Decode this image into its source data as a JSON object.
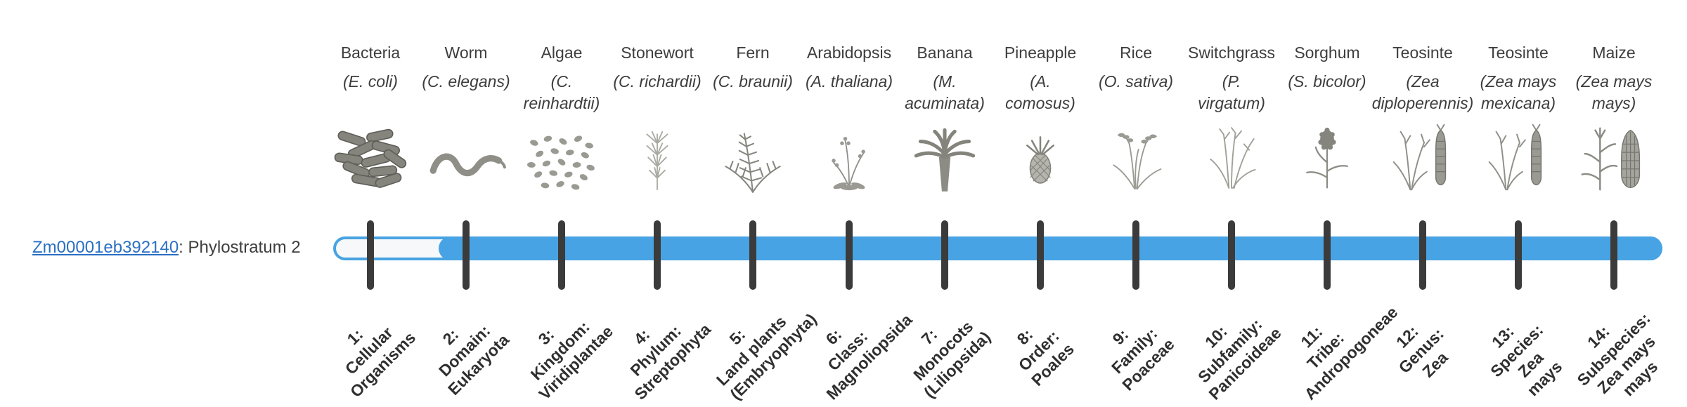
{
  "gene": {
    "id": "Zm00001eb392140",
    "suffix": ": Phylostratum 2"
  },
  "timeline": {
    "bar_color": "#47a3e3",
    "unfilled_color": "#f7f8f9",
    "tick_color": "#3b3b3b",
    "filled_from_stratum": 2,
    "num_strata": 14
  },
  "organisms": [
    {
      "name": "Bacteria",
      "sci_lines": [
        "(E. coli)"
      ],
      "icon": "bacteria",
      "stratum_lines": [
        "1:",
        "Cellular",
        "Organisms"
      ]
    },
    {
      "name": "Worm",
      "sci_lines": [
        "(C. elegans)"
      ],
      "icon": "worm",
      "stratum_lines": [
        "2:",
        "Domain:",
        "Eukaryota"
      ]
    },
    {
      "name": "Algae",
      "sci_lines": [
        "(C.",
        "reinhardtii)"
      ],
      "icon": "algae",
      "stratum_lines": [
        "3:",
        "Kingdom:",
        "Viridiplantae"
      ]
    },
    {
      "name": "Stonewort",
      "sci_lines": [
        "(C. richardii)"
      ],
      "icon": "stonewort",
      "stratum_lines": [
        "4:",
        "Phylum:",
        "Streptophyta"
      ]
    },
    {
      "name": "Fern",
      "sci_lines": [
        "(C. braunii)"
      ],
      "icon": "fern",
      "stratum_lines": [
        "5:",
        "Land plants",
        "(Embryophyta)"
      ]
    },
    {
      "name": "Arabidopsis",
      "sci_lines": [
        "(A. thaliana)"
      ],
      "icon": "arabidopsis",
      "stratum_lines": [
        "6:",
        "Class:",
        "Magnoliopsida"
      ]
    },
    {
      "name": "Banana",
      "sci_lines": [
        "(M.",
        "acuminata)"
      ],
      "icon": "banana",
      "stratum_lines": [
        "7:",
        "Monocots",
        "(Liliopsida)"
      ]
    },
    {
      "name": "Pineapple",
      "sci_lines": [
        "(A.",
        "comosus)"
      ],
      "icon": "pineapple",
      "stratum_lines": [
        "8:",
        "Order:",
        "Poales"
      ]
    },
    {
      "name": "Rice",
      "sci_lines": [
        "(O. sativa)"
      ],
      "icon": "rice",
      "stratum_lines": [
        "9:",
        "Family:",
        "Poaceae"
      ]
    },
    {
      "name": "Switchgrass",
      "sci_lines": [
        "(P.",
        "virgatum)"
      ],
      "icon": "switchgrass",
      "stratum_lines": [
        "10:",
        "Subfamily:",
        "Panicoideae"
      ]
    },
    {
      "name": "Sorghum",
      "sci_lines": [
        "(S. bicolor)"
      ],
      "icon": "sorghum",
      "stratum_lines": [
        "11:",
        "Tribe:",
        "Andropogoneae"
      ]
    },
    {
      "name": "Teosinte",
      "sci_lines": [
        "(Zea",
        "diploperennis)"
      ],
      "icon": "teosinte",
      "stratum_lines": [
        "12:",
        "Genus:",
        "Zea"
      ]
    },
    {
      "name": "Teosinte",
      "sci_lines": [
        "(Zea mays",
        "mexicana)"
      ],
      "icon": "teosinte2",
      "stratum_lines": [
        "13:",
        "Species:",
        "Zea",
        "mays"
      ]
    },
    {
      "name": "Maize",
      "sci_lines": [
        "(Zea mays",
        "mays)"
      ],
      "icon": "maize",
      "stratum_lines": [
        "14:",
        "Subspecies:",
        "Zea mays",
        "mays"
      ]
    }
  ]
}
